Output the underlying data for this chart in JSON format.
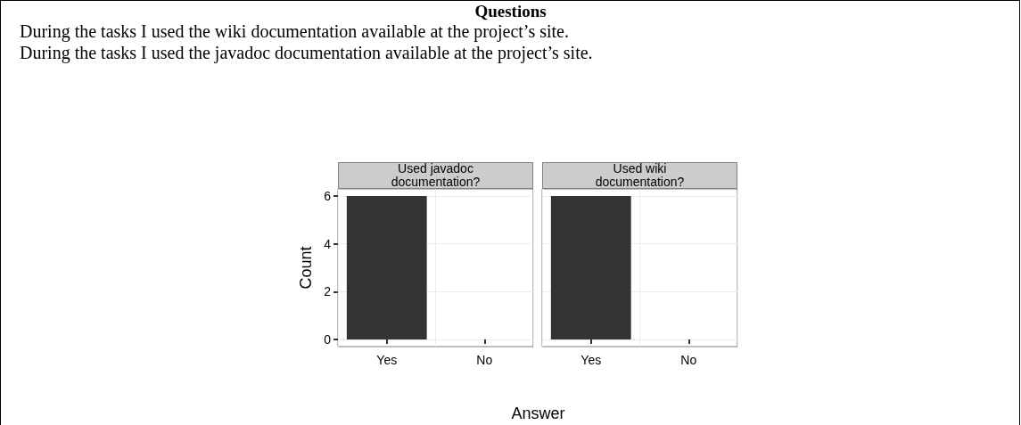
{
  "chart_data": [
    {
      "type": "bar",
      "title": "Used javadoc documentation?",
      "annotations": [
        "Questions",
        "During the tasks I used the wiki documentation available at the project’s site.",
        "During the tasks I used the javadoc documentation available at the project’s site."
      ],
      "xlabel": "Answer",
      "ylabel": "Count",
      "categories": [
        "Yes",
        "No"
      ],
      "values": [
        6,
        0
      ],
      "color": "#333333",
      "ylim": [
        -0.3,
        6.3
      ],
      "yticks": [
        0,
        2,
        4,
        6
      ],
      "grid": true
    },
    {
      "type": "bar",
      "title": "Used wiki documentation?",
      "categories": [
        "Yes",
        "No"
      ],
      "values": [
        6,
        0
      ],
      "color": "#333333",
      "ylim": [
        -0.3,
        6.3
      ],
      "yticks": [
        0,
        2,
        4,
        6
      ],
      "grid": true,
      "tick_labels": "x"
    }
  ]
}
